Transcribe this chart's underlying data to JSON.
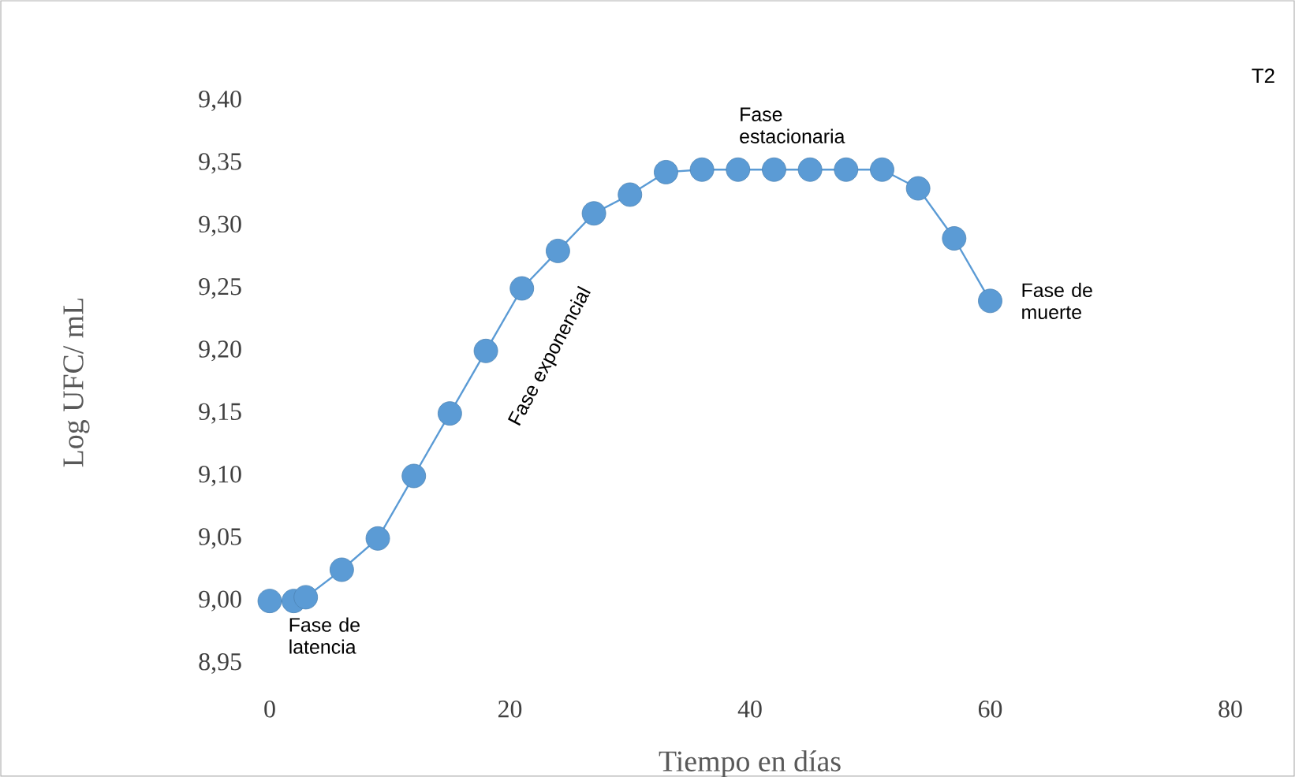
{
  "chart_data": {
    "type": "line",
    "xlabel": "Tiempo en días",
    "ylabel": "Log UFC/ mL",
    "x": [
      0,
      2,
      3,
      6,
      9,
      12,
      15,
      18,
      21,
      24,
      27,
      30,
      33,
      36,
      39,
      42,
      45,
      48,
      51,
      54,
      57,
      60
    ],
    "series": [
      {
        "color": "#5b9bd5",
        "values": [
          9.0,
          9.0,
          9.003,
          9.025,
          9.05,
          9.1,
          9.15,
          9.2,
          9.25,
          9.28,
          9.31,
          9.325,
          9.343,
          9.345,
          9.345,
          9.345,
          9.345,
          9.345,
          9.345,
          9.33,
          9.29,
          9.24
        ]
      }
    ],
    "xlim": [
      0,
      80
    ],
    "xticks": [
      0,
      20,
      40,
      60,
      80
    ],
    "ylim": [
      8.95,
      9.4
    ],
    "yticks": [
      {
        "value": 8.95,
        "label": "8,95"
      },
      {
        "value": 9.0,
        "label": "9,00"
      },
      {
        "value": 9.05,
        "label": "9,05"
      },
      {
        "value": 9.1,
        "label": "9,10"
      },
      {
        "value": 9.15,
        "label": "9,15"
      },
      {
        "value": 9.2,
        "label": "9,20"
      },
      {
        "value": 9.25,
        "label": "9,25"
      },
      {
        "value": 9.3,
        "label": "9,30"
      },
      {
        "value": 9.35,
        "label": "9,35"
      },
      {
        "value": 9.4,
        "label": "9,40"
      }
    ],
    "marker": "circle",
    "grid": false,
    "annotations": [
      "T2",
      {
        "text": "Fase de latencia",
        "x": 3,
        "y": 9.0
      },
      {
        "text": "Fase exponencial",
        "x": 18,
        "y": 9.2
      },
      {
        "text": "Fase estacionaria",
        "x": 45,
        "y": 9.345
      },
      {
        "text": "Fase de muerte",
        "x": 60,
        "y": 9.24
      }
    ]
  }
}
